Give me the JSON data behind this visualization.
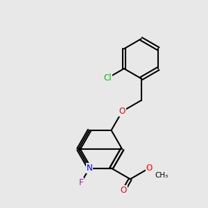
{
  "bg_color": "#e8e8e8",
  "bond_color": "#000000",
  "bond_width": 1.5,
  "atom_colors": {
    "N": "#0000ff",
    "O": "#ff0000",
    "F": "#cc00cc",
    "Cl": "#00bb00",
    "C": "#000000"
  },
  "font_size": 8.5
}
